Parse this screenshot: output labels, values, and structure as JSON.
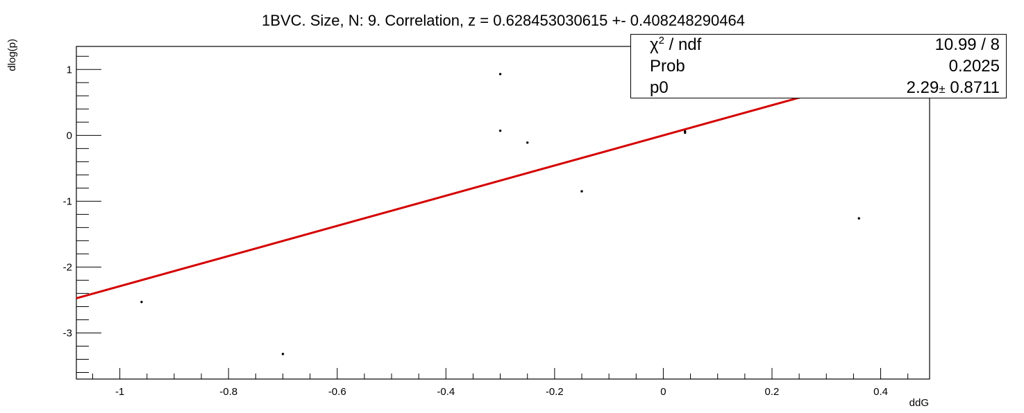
{
  "chart_data": {
    "type": "scatter",
    "title": "1BVC. Size, N: 9. Correlation, z = 0.628453030615 +- 0.408248290464",
    "xlabel": "ddG",
    "ylabel": "dlog(p)",
    "xlim": [
      -1.08,
      0.49
    ],
    "ylim": [
      -3.7,
      1.35
    ],
    "x_ticks": [
      -1,
      -0.8,
      -0.6,
      -0.4,
      -0.2,
      0,
      0.2,
      0.4
    ],
    "y_ticks": [
      -3,
      -2,
      -1,
      0,
      1
    ],
    "x_tick_labels": [
      "-1",
      "-0.8",
      "-0.6",
      "-0.4",
      "-0.2",
      "0",
      "0.2",
      "0.4"
    ],
    "y_tick_labels": [
      "-3",
      "-2",
      "-1",
      "0",
      "1"
    ],
    "points": [
      {
        "x": -0.96,
        "y": -2.53
      },
      {
        "x": -0.7,
        "y": -3.32
      },
      {
        "x": -0.3,
        "y": 0.93
      },
      {
        "x": -0.3,
        "y": 0.07
      },
      {
        "x": -0.25,
        "y": -0.11
      },
      {
        "x": -0.15,
        "y": -0.85
      },
      {
        "x": 0.04,
        "y": 0.04
      },
      {
        "x": 0.04,
        "y": 0.06
      },
      {
        "x": 0.36,
        "y": -1.26
      }
    ],
    "fit_line": {
      "slope": 2.29,
      "x_range": [
        -1.08,
        0.48
      ],
      "color": "#d40000"
    },
    "grid": false,
    "stats_box": {
      "chi2_label": "/ ndf",
      "chi2_symbol": "χ",
      "chi2_sup": "2",
      "chi2_value": "10.99 / 8",
      "prob_label": "Prob",
      "prob_value": "0.2025",
      "p0_label": "p0",
      "p0_value": "2.29",
      "p0_error": "0.8711",
      "pm_symbol": "±"
    },
    "legend_placement": "top-right"
  }
}
